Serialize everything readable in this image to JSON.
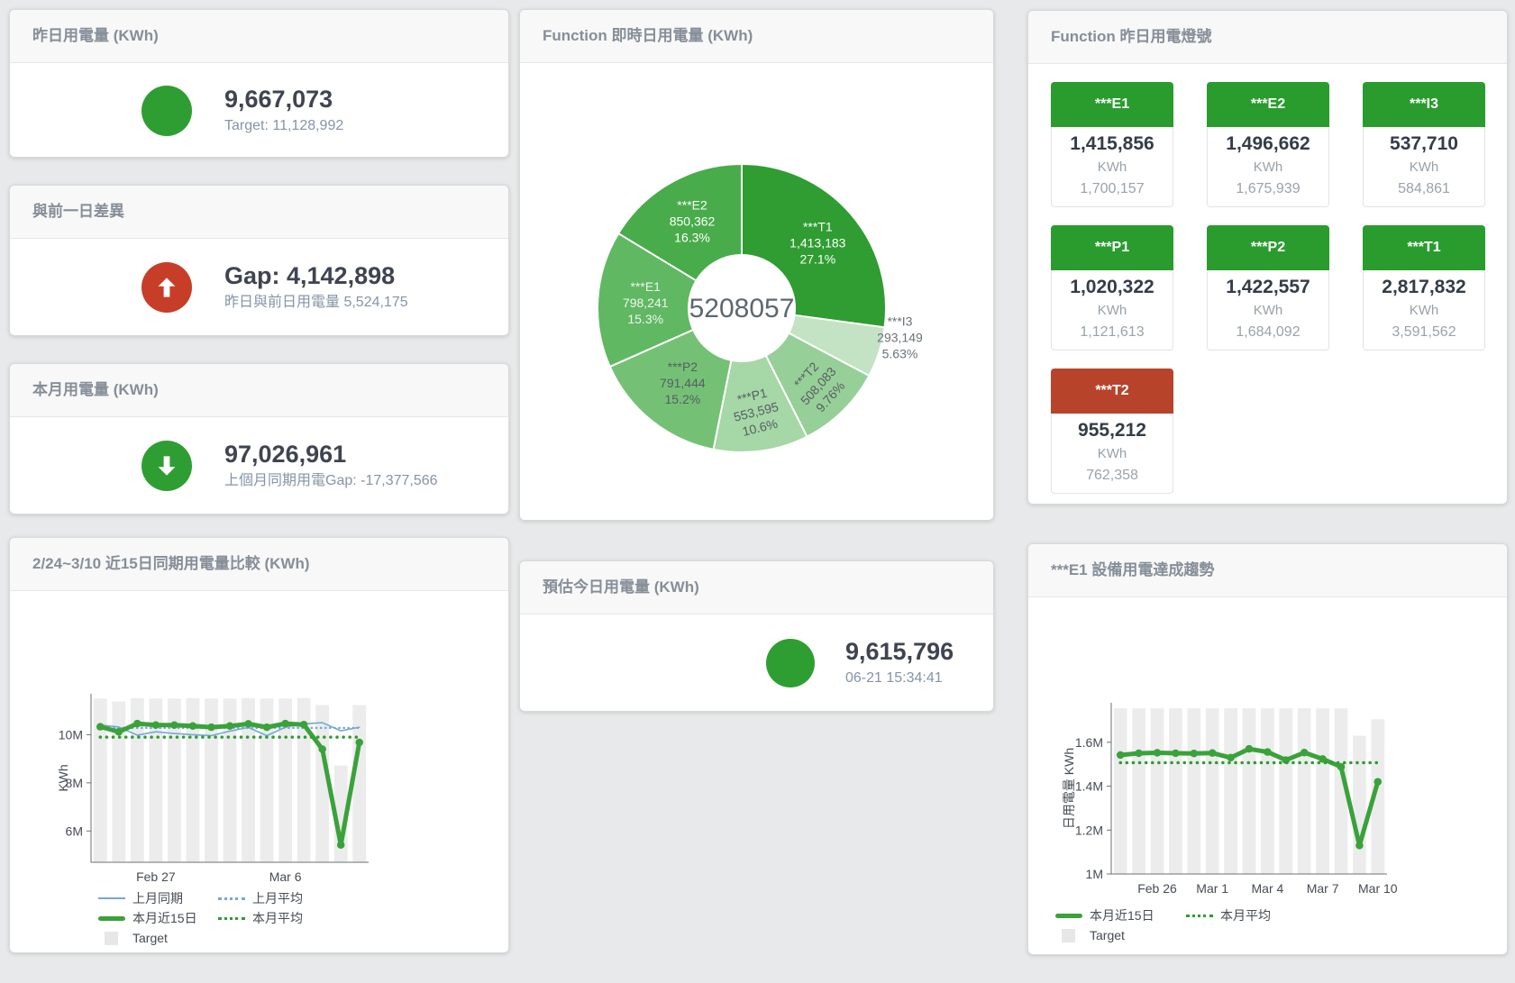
{
  "colors": {
    "green": "#2f9e32",
    "red": "#c73e28",
    "tile_green": "#2a9c2e",
    "tile_red": "#b8432b",
    "blue": "#74a7d8",
    "line_green": "#3aa23a",
    "dotted_green": "#2e9d30",
    "bar_gray": "#ececec"
  },
  "cards": {
    "yesterday": {
      "title": "昨日用電量 (KWh)",
      "value": "9,667,073",
      "subtitle": "Target: 11,128,992"
    },
    "gap": {
      "title": "與前一日差異",
      "value": "Gap: 4,142,898",
      "subtitle": "昨日與前日用電量 5,524,175"
    },
    "month": {
      "title": "本月用電量 (KWh)",
      "value": "97,026,961",
      "subtitle": "上個月同期用電Gap: -17,377,566"
    },
    "realtime": {
      "title": "Function 即時日用電量 (KWh)"
    },
    "lights": {
      "title": "Function 昨日用電燈號"
    },
    "compare": {
      "title": "2/24~3/10 近15日同期用電量比較 (KWh)"
    },
    "estimate": {
      "title": "預估今日用電量 (KWh)",
      "value": "9,615,796",
      "subtitle": "06-21 15:34:41"
    },
    "trend": {
      "title": "***E1 設備用電達成趨勢"
    }
  },
  "lights_tiles": [
    {
      "label": "***E1",
      "value": "1,415,856",
      "unit": "KWh",
      "target": "1,700,157",
      "status": "green"
    },
    {
      "label": "***E2",
      "value": "1,496,662",
      "unit": "KWh",
      "target": "1,675,939",
      "status": "green"
    },
    {
      "label": "***I3",
      "value": "537,710",
      "unit": "KWh",
      "target": "584,861",
      "status": "green"
    },
    {
      "label": "***P1",
      "value": "1,020,322",
      "unit": "KWh",
      "target": "1,121,613",
      "status": "green"
    },
    {
      "label": "***P2",
      "value": "1,422,557",
      "unit": "KWh",
      "target": "1,684,092",
      "status": "green"
    },
    {
      "label": "***T1",
      "value": "2,817,832",
      "unit": "KWh",
      "target": "3,591,562",
      "status": "green"
    },
    {
      "label": "***T2",
      "value": "955,212",
      "unit": "KWh",
      "target": "762,358",
      "status": "red"
    }
  ],
  "chart_data": [
    {
      "id": "donut",
      "type": "pie",
      "title": "Function 即時日用電量 (KWh)",
      "center_label": "5208057",
      "slices": [
        {
          "name": "***T1",
          "value": 1413183,
          "pct": "27.1%",
          "color": "#2f9d32",
          "label_color": "#ffffff",
          "label_r": 112,
          "rotate": 0,
          "label_dx": 0,
          "label_dy": 0
        },
        {
          "name": "***I3",
          "value": 293149,
          "pct": "5.63%",
          "color": "#c4e2c4",
          "label_color": "#6a7278",
          "label_r": 178,
          "rotate": 0,
          "label_dx": 6,
          "label_dy": -23
        },
        {
          "name": "***T2",
          "value": 508083,
          "pct": "9.76%",
          "color": "#97cf98",
          "label_color": "#565e62",
          "label_r": 120,
          "rotate": -48,
          "label_dx": 0,
          "label_dy": 0
        },
        {
          "name": "***P1",
          "value": 553595,
          "pct": "10.6%",
          "color": "#a6d7a7",
          "label_color": "#565e62",
          "label_r": 115,
          "rotate": -14,
          "label_dx": 0,
          "label_dy": 0
        },
        {
          "name": "***P2",
          "value": 791444,
          "pct": "15.2%",
          "color": "#74c176",
          "label_color": "#565e62",
          "label_r": 105,
          "rotate": 0,
          "label_dx": 0,
          "label_dy": 0
        },
        {
          "name": "***E1",
          "value": 798241,
          "pct": "15.3%",
          "color": "#60b862",
          "label_color": "#eef7ee",
          "label_r": 107,
          "rotate": 0,
          "label_dx": 0,
          "label_dy": 0
        },
        {
          "name": "***E2",
          "value": 850362,
          "pct": "16.3%",
          "color": "#49ac4b",
          "label_color": "#ffffff",
          "label_r": 112,
          "rotate": 0,
          "label_dx": 0,
          "label_dy": 0
        }
      ]
    },
    {
      "id": "compare",
      "type": "line",
      "title": "2/24~3/10 近15日同期用電量比較 (KWh)",
      "ylabel": "KWh",
      "ylim": [
        4700000,
        11700000
      ],
      "yticks": [
        {
          "value": 6000000,
          "label": "6M"
        },
        {
          "value": 8000000,
          "label": "8M"
        },
        {
          "value": 10000000,
          "label": "10M"
        }
      ],
      "xticks": [
        {
          "index": 3,
          "label": "Feb 27"
        },
        {
          "index": 10,
          "label": "Mar 6"
        }
      ],
      "target_name": "Target",
      "target_bars": [
        11500000,
        11380000,
        11520000,
        11500000,
        11500000,
        11520000,
        11500000,
        11500000,
        11520000,
        11500000,
        11500000,
        11520000,
        11230000,
        8720000,
        11230000
      ],
      "series": [
        {
          "name": "上月同期",
          "style": "solid",
          "width": 1.6,
          "color": "#74a7d8",
          "markers": false,
          "values": [
            10400000,
            10320000,
            9980000,
            10120000,
            10050000,
            10000000,
            9960000,
            10150000,
            10300000,
            9960000,
            10310000,
            10450000,
            10500000,
            10160000,
            10310000
          ]
        },
        {
          "name": "上月平均",
          "style": "dotted",
          "width": 2.5,
          "color": "#74a7d8",
          "markers": false,
          "values": [
            10280000,
            10280000,
            10280000,
            10280000,
            10280000,
            10280000,
            10280000,
            10280000,
            10280000,
            10280000,
            10280000,
            10280000,
            10280000,
            10280000,
            10280000
          ]
        },
        {
          "name": "本月近15日",
          "style": "solid",
          "width": 5,
          "color": "#3aa23a",
          "markers": true,
          "values": [
            10330000,
            10120000,
            10460000,
            10400000,
            10400000,
            10360000,
            10310000,
            10360000,
            10450000,
            10310000,
            10460000,
            10420000,
            9400000,
            5420000,
            9680000
          ]
        },
        {
          "name": "本月平均",
          "style": "dotted",
          "width": 3.5,
          "color": "#2e9d30",
          "markers": false,
          "values": [
            9900000,
            9900000,
            9900000,
            9900000,
            9900000,
            9900000,
            9900000,
            9900000,
            9900000,
            9900000,
            9900000,
            9900000,
            9900000,
            9900000,
            9900000
          ]
        }
      ],
      "legend": [
        {
          "label": "上月同期",
          "chip": "line-solid-blue"
        },
        {
          "label": "上月平均",
          "chip": "line-dotted-blue"
        },
        {
          "label": "本月近15日",
          "chip": "line-thick-green"
        },
        {
          "label": "本月平均",
          "chip": "line-dotted-green"
        },
        {
          "label": "Target",
          "chip": "square-gray"
        }
      ]
    },
    {
      "id": "trend",
      "type": "line",
      "title": "***E1 設備用電達成趨勢",
      "ylabel": "日用電量 KWh",
      "ylim": [
        1000000,
        1780000
      ],
      "yticks": [
        {
          "value": 1000000,
          "label": "1M"
        },
        {
          "value": 1200000,
          "label": "1.2M"
        },
        {
          "value": 1400000,
          "label": "1.4M"
        },
        {
          "value": 1600000,
          "label": "1.6M"
        }
      ],
      "xticks": [
        {
          "index": 2,
          "label": "Feb 26"
        },
        {
          "index": 5,
          "label": "Mar 1"
        },
        {
          "index": 8,
          "label": "Mar 4"
        },
        {
          "index": 11,
          "label": "Mar 7"
        },
        {
          "index": 14,
          "label": "Mar 10"
        }
      ],
      "target_name": "Target",
      "target_bars": [
        1755000,
        1755000,
        1755000,
        1755000,
        1755000,
        1755000,
        1755000,
        1755000,
        1755000,
        1755000,
        1755000,
        1755000,
        1755000,
        1630000,
        1705000
      ],
      "series": [
        {
          "name": "本月近15日",
          "style": "solid",
          "width": 5,
          "color": "#3aa23a",
          "markers": true,
          "values": [
            1542000,
            1550000,
            1552000,
            1550000,
            1549000,
            1551000,
            1530000,
            1570000,
            1556000,
            1519000,
            1553000,
            1524000,
            1488000,
            1130000,
            1420000
          ]
        },
        {
          "name": "本月平均",
          "style": "dotted",
          "width": 3.5,
          "color": "#2e9d30",
          "markers": false,
          "values": [
            1507000,
            1507000,
            1507000,
            1507000,
            1507000,
            1507000,
            1507000,
            1507000,
            1507000,
            1507000,
            1507000,
            1507000,
            1507000,
            1507000,
            1507000
          ]
        }
      ],
      "legend": [
        {
          "label": "本月近15日",
          "chip": "line-thick-green"
        },
        {
          "label": "本月平均",
          "chip": "line-dotted-green"
        },
        {
          "label": "Target",
          "chip": "square-gray"
        }
      ]
    }
  ]
}
